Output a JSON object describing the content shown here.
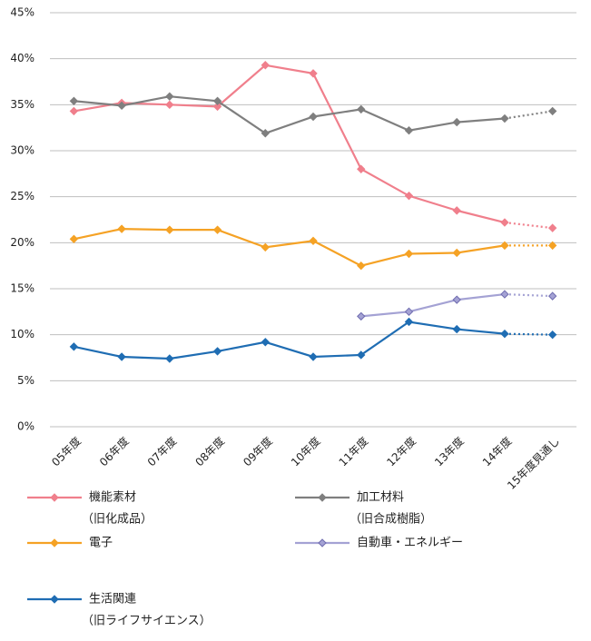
{
  "chart_data": {
    "type": "line",
    "categories": [
      "05年度",
      "06年度",
      "07年度",
      "08年度",
      "09年度",
      "10年度",
      "11年度",
      "12年度",
      "13年度",
      "14年度",
      "15年度見通し"
    ],
    "series": [
      {
        "name": "機能素材",
        "note": "（旧化成品）",
        "color": "#f07f8c",
        "values": [
          34.3,
          35.2,
          35.0,
          34.8,
          39.3,
          38.4,
          28.0,
          25.1,
          23.5,
          22.2,
          21.6
        ]
      },
      {
        "name": "加工材料",
        "note": "（旧合成樹脂）",
        "color": "#7f7f7f",
        "values": [
          35.4,
          34.9,
          35.9,
          35.4,
          31.9,
          33.7,
          34.5,
          32.2,
          33.1,
          33.5,
          34.3
        ]
      },
      {
        "name": "電子",
        "color": "#f5a225",
        "values": [
          20.4,
          21.5,
          21.4,
          21.4,
          19.5,
          20.2,
          17.5,
          18.8,
          18.9,
          19.7,
          19.7
        ]
      },
      {
        "name": "自動車・エネルギー",
        "color": "#a4a2d4",
        "values": [
          null,
          null,
          null,
          null,
          null,
          null,
          12.0,
          12.5,
          13.8,
          14.4,
          14.2
        ]
      },
      {
        "name": "生活関連",
        "note": "（旧ライフサイエンス）",
        "color": "#1f6db3",
        "values": [
          8.7,
          7.6,
          7.4,
          8.2,
          9.2,
          7.6,
          7.8,
          11.4,
          10.6,
          10.1,
          10.0
        ]
      }
    ],
    "ylim": [
      0,
      45
    ],
    "yticks": [
      {
        "value": 0,
        "label": "0%"
      },
      {
        "value": 5,
        "label": "5%"
      },
      {
        "value": 10,
        "label": "10%"
      },
      {
        "value": 15,
        "label": "15%"
      },
      {
        "value": 20,
        "label": "20%"
      },
      {
        "value": 25,
        "label": "25%"
      },
      {
        "value": 30,
        "label": "30%"
      },
      {
        "value": 35,
        "label": "35%"
      },
      {
        "value": 40,
        "label": "40%"
      },
      {
        "value": 45,
        "label": "45%"
      }
    ],
    "grid": true,
    "last_segment_dotted": true
  }
}
